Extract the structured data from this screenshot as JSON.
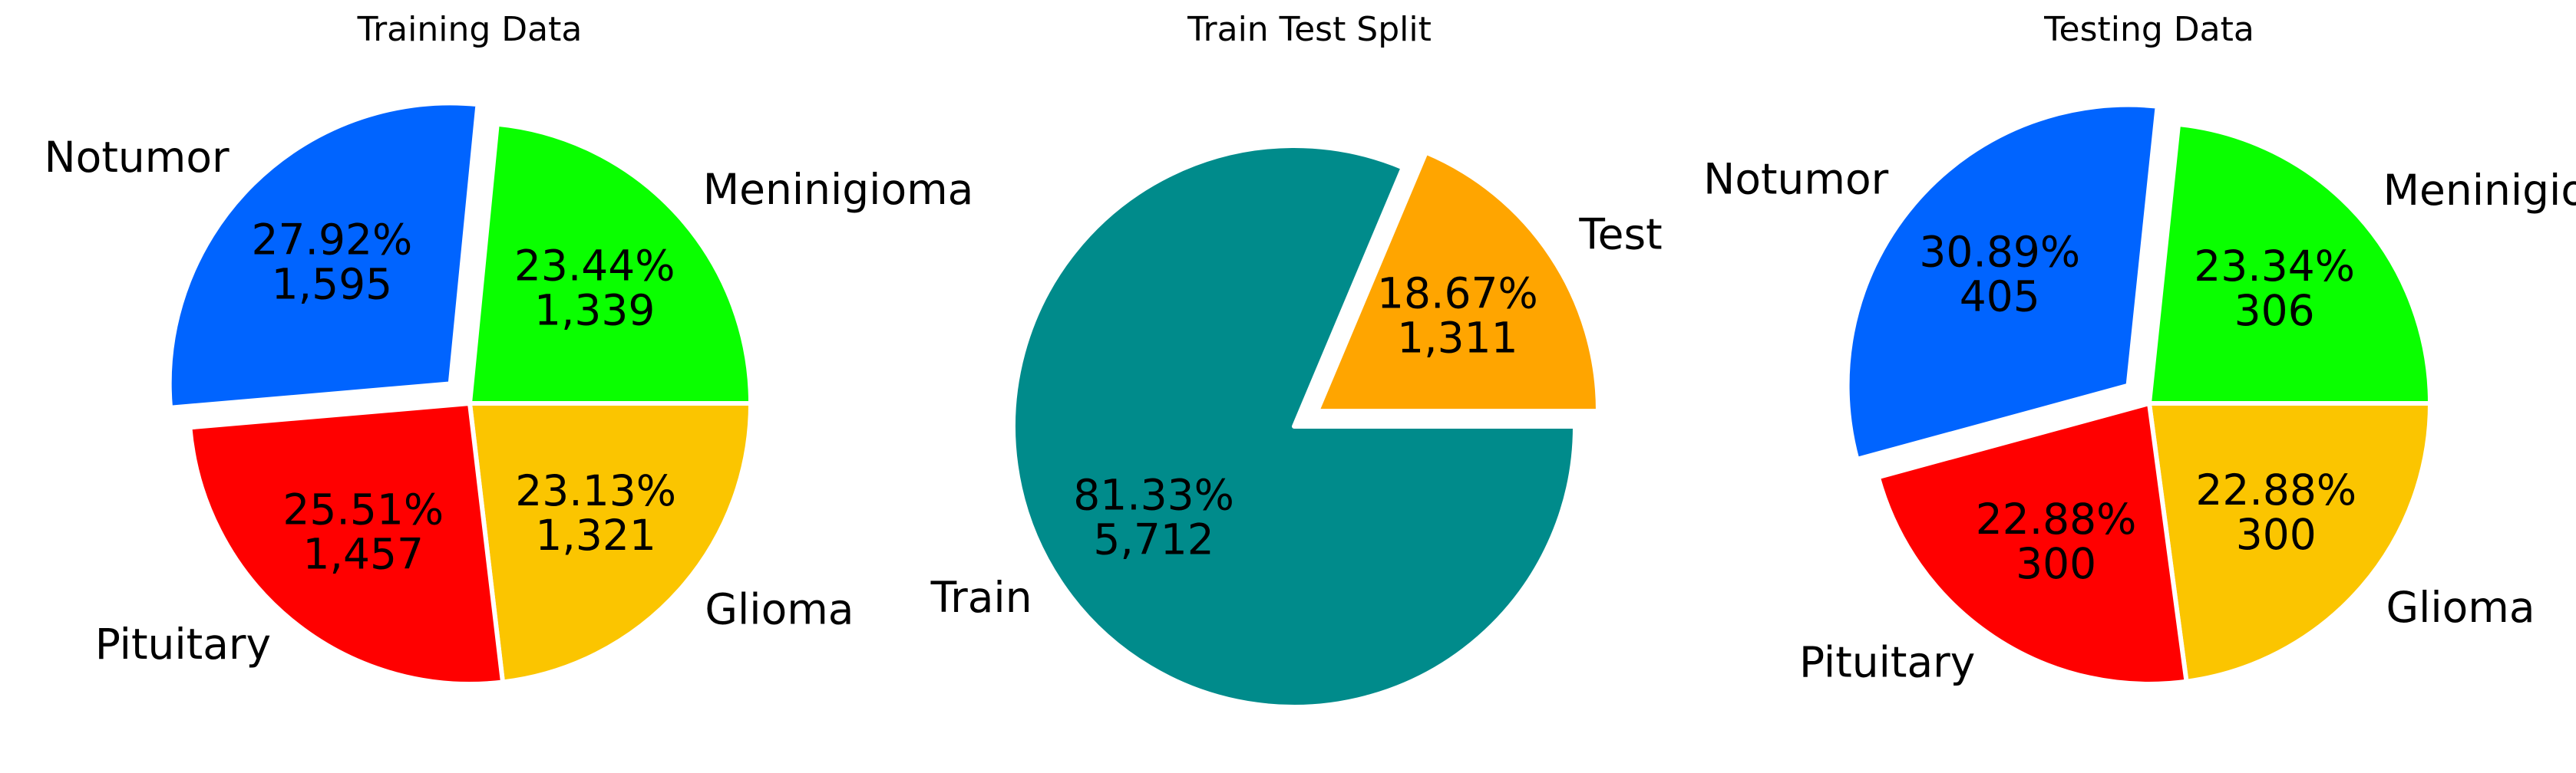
{
  "chart_data": [
    {
      "type": "pie",
      "title": "Training Data",
      "categories": [
        "Glioma",
        "Pituitary",
        "Notumor",
        "Meninigioma"
      ],
      "values": [
        1321,
        1457,
        1595,
        1339
      ],
      "percent_labels": [
        "23.13%",
        "25.51%",
        "27.92%",
        "23.44%"
      ],
      "count_labels": [
        "1,321",
        "1,457",
        "1,595",
        "1,339"
      ],
      "colors": [
        "#FBC500",
        "#FF0000",
        "#0064FF",
        "#0AFF00"
      ],
      "exploded": [
        false,
        false,
        true,
        false
      ],
      "start_angle": 0,
      "direction": "clockwise",
      "legend": false
    },
    {
      "type": "pie",
      "title": "Train Test Split",
      "categories": [
        "Train",
        "Test"
      ],
      "values": [
        5712,
        1311
      ],
      "percent_labels": [
        "81.33%",
        "18.67%"
      ],
      "count_labels": [
        "5,712",
        "1,311"
      ],
      "colors": [
        "#008B8B",
        "#FFA500"
      ],
      "exploded": [
        false,
        true
      ],
      "start_angle": 0,
      "direction": "clockwise",
      "legend": false
    },
    {
      "type": "pie",
      "title": "Testing Data",
      "categories": [
        "Glioma",
        "Pituitary",
        "Notumor",
        "Meninigioma"
      ],
      "values": [
        300,
        300,
        405,
        306
      ],
      "percent_labels": [
        "22.88%",
        "22.88%",
        "30.89%",
        "23.34%"
      ],
      "count_labels": [
        "300",
        "300",
        "405",
        "306"
      ],
      "colors": [
        "#FBC500",
        "#FF0000",
        "#0064FF",
        "#0AFF00"
      ],
      "exploded": [
        false,
        false,
        true,
        false
      ],
      "start_angle": 0,
      "direction": "clockwise",
      "legend": false
    }
  ]
}
